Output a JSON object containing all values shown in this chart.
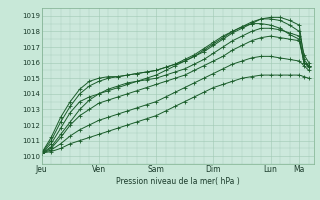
{
  "xlabel": "Pression niveau de la mer( hPa )",
  "bg_color": "#c8e8d8",
  "plot_bg_color": "#cce8dc",
  "grid_color": "#a0c8b4",
  "line_color": "#1a5c2a",
  "ylim": [
    1009.5,
    1019.5
  ],
  "xlim": [
    0,
    114
  ],
  "yticks": [
    1010,
    1011,
    1012,
    1013,
    1014,
    1015,
    1016,
    1017,
    1018,
    1019
  ],
  "day_ticks": [
    0,
    24,
    48,
    72,
    96,
    108
  ],
  "day_labels": [
    "Jeu",
    "Ven",
    "Sam",
    "Dim",
    "Lun",
    "Ma"
  ],
  "series": [
    {
      "x": [
        0,
        4,
        8,
        12,
        16,
        20,
        24,
        28,
        32,
        36,
        40,
        44,
        48,
        52,
        56,
        60,
        64,
        68,
        72,
        76,
        80,
        84,
        88,
        92,
        96,
        100,
        104,
        108,
        110,
        112
      ],
      "y": [
        1010.2,
        1010.8,
        1011.8,
        1012.8,
        1013.5,
        1013.8,
        1014.0,
        1014.2,
        1014.4,
        1014.6,
        1014.8,
        1015.0,
        1015.2,
        1015.5,
        1015.8,
        1016.1,
        1016.4,
        1016.8,
        1017.2,
        1017.6,
        1018.0,
        1018.3,
        1018.5,
        1018.5,
        1018.4,
        1018.2,
        1017.8,
        1017.5,
        1016.0,
        1015.8
      ]
    },
    {
      "x": [
        0,
        4,
        8,
        12,
        16,
        20,
        24,
        28,
        32,
        36,
        40,
        44,
        48,
        52,
        56,
        60,
        64,
        68,
        72,
        76,
        80,
        84,
        88,
        92,
        96,
        100,
        104,
        108,
        110,
        112
      ],
      "y": [
        1010.2,
        1011.0,
        1012.2,
        1013.2,
        1014.0,
        1014.5,
        1014.8,
        1015.0,
        1015.1,
        1015.2,
        1015.3,
        1015.4,
        1015.5,
        1015.7,
        1015.9,
        1016.2,
        1016.5,
        1016.9,
        1017.3,
        1017.7,
        1018.0,
        1018.3,
        1018.6,
        1018.8,
        1018.8,
        1018.7,
        1018.4,
        1018.0,
        1016.5,
        1016.0
      ]
    },
    {
      "x": [
        0,
        4,
        8,
        12,
        16,
        20,
        24,
        28,
        32,
        36,
        40,
        44,
        48,
        52,
        56,
        60,
        64,
        68,
        72,
        76,
        80,
        84,
        88,
        92,
        96,
        100,
        104,
        108,
        110,
        112
      ],
      "y": [
        1010.2,
        1011.2,
        1012.5,
        1013.5,
        1014.3,
        1014.8,
        1015.0,
        1015.1,
        1015.1,
        1015.2,
        1015.3,
        1015.4,
        1015.5,
        1015.7,
        1015.9,
        1016.1,
        1016.4,
        1016.7,
        1017.1,
        1017.5,
        1017.9,
        1018.2,
        1018.5,
        1018.8,
        1018.9,
        1018.9,
        1018.7,
        1018.4,
        1016.2,
        1015.8
      ]
    },
    {
      "x": [
        0,
        4,
        8,
        12,
        16,
        20,
        24,
        28,
        32,
        36,
        40,
        44,
        48,
        52,
        56,
        60,
        64,
        68,
        72,
        76,
        80,
        84,
        88,
        92,
        96,
        100,
        104,
        108,
        110,
        112
      ],
      "y": [
        1010.2,
        1010.5,
        1011.2,
        1012.0,
        1012.6,
        1013.0,
        1013.4,
        1013.6,
        1013.8,
        1014.0,
        1014.2,
        1014.4,
        1014.6,
        1014.8,
        1015.0,
        1015.2,
        1015.5,
        1015.8,
        1016.1,
        1016.4,
        1016.8,
        1017.1,
        1017.4,
        1017.6,
        1017.7,
        1017.6,
        1017.5,
        1017.4,
        1016.0,
        1015.7
      ]
    },
    {
      "x": [
        0,
        4,
        8,
        12,
        16,
        20,
        24,
        28,
        32,
        36,
        40,
        44,
        48,
        52,
        56,
        60,
        64,
        68,
        72,
        76,
        80,
        84,
        88,
        92,
        96,
        100,
        104,
        108,
        110,
        112
      ],
      "y": [
        1010.2,
        1010.4,
        1010.8,
        1011.3,
        1011.7,
        1012.0,
        1012.3,
        1012.5,
        1012.7,
        1012.9,
        1013.1,
        1013.3,
        1013.5,
        1013.8,
        1014.1,
        1014.4,
        1014.7,
        1015.0,
        1015.3,
        1015.6,
        1015.9,
        1016.1,
        1016.3,
        1016.4,
        1016.4,
        1016.3,
        1016.2,
        1016.1,
        1015.8,
        1015.5
      ]
    },
    {
      "x": [
        0,
        4,
        8,
        12,
        16,
        20,
        24,
        28,
        32,
        36,
        40,
        44,
        48,
        52,
        56,
        60,
        64,
        68,
        72,
        76,
        80,
        84,
        88,
        92,
        96,
        100,
        104,
        108,
        110,
        112
      ],
      "y": [
        1010.2,
        1010.3,
        1010.5,
        1010.8,
        1011.0,
        1011.2,
        1011.4,
        1011.6,
        1011.8,
        1012.0,
        1012.2,
        1012.4,
        1012.6,
        1012.9,
        1013.2,
        1013.5,
        1013.8,
        1014.1,
        1014.4,
        1014.6,
        1014.8,
        1015.0,
        1015.1,
        1015.2,
        1015.2,
        1015.2,
        1015.2,
        1015.2,
        1015.1,
        1015.0
      ]
    },
    {
      "x": [
        0,
        4,
        8,
        12,
        16,
        20,
        24,
        28,
        32,
        36,
        40,
        44,
        48,
        52,
        56,
        60,
        64,
        68,
        72,
        76,
        80,
        84,
        88,
        92,
        96,
        100,
        104,
        108,
        110,
        112
      ],
      "y": [
        1010.2,
        1010.6,
        1011.4,
        1012.2,
        1013.0,
        1013.6,
        1014.0,
        1014.3,
        1014.5,
        1014.7,
        1014.8,
        1014.9,
        1015.0,
        1015.2,
        1015.4,
        1015.6,
        1015.9,
        1016.2,
        1016.6,
        1017.0,
        1017.4,
        1017.7,
        1018.0,
        1018.2,
        1018.2,
        1018.1,
        1017.9,
        1017.7,
        1016.0,
        1015.8
      ]
    }
  ]
}
